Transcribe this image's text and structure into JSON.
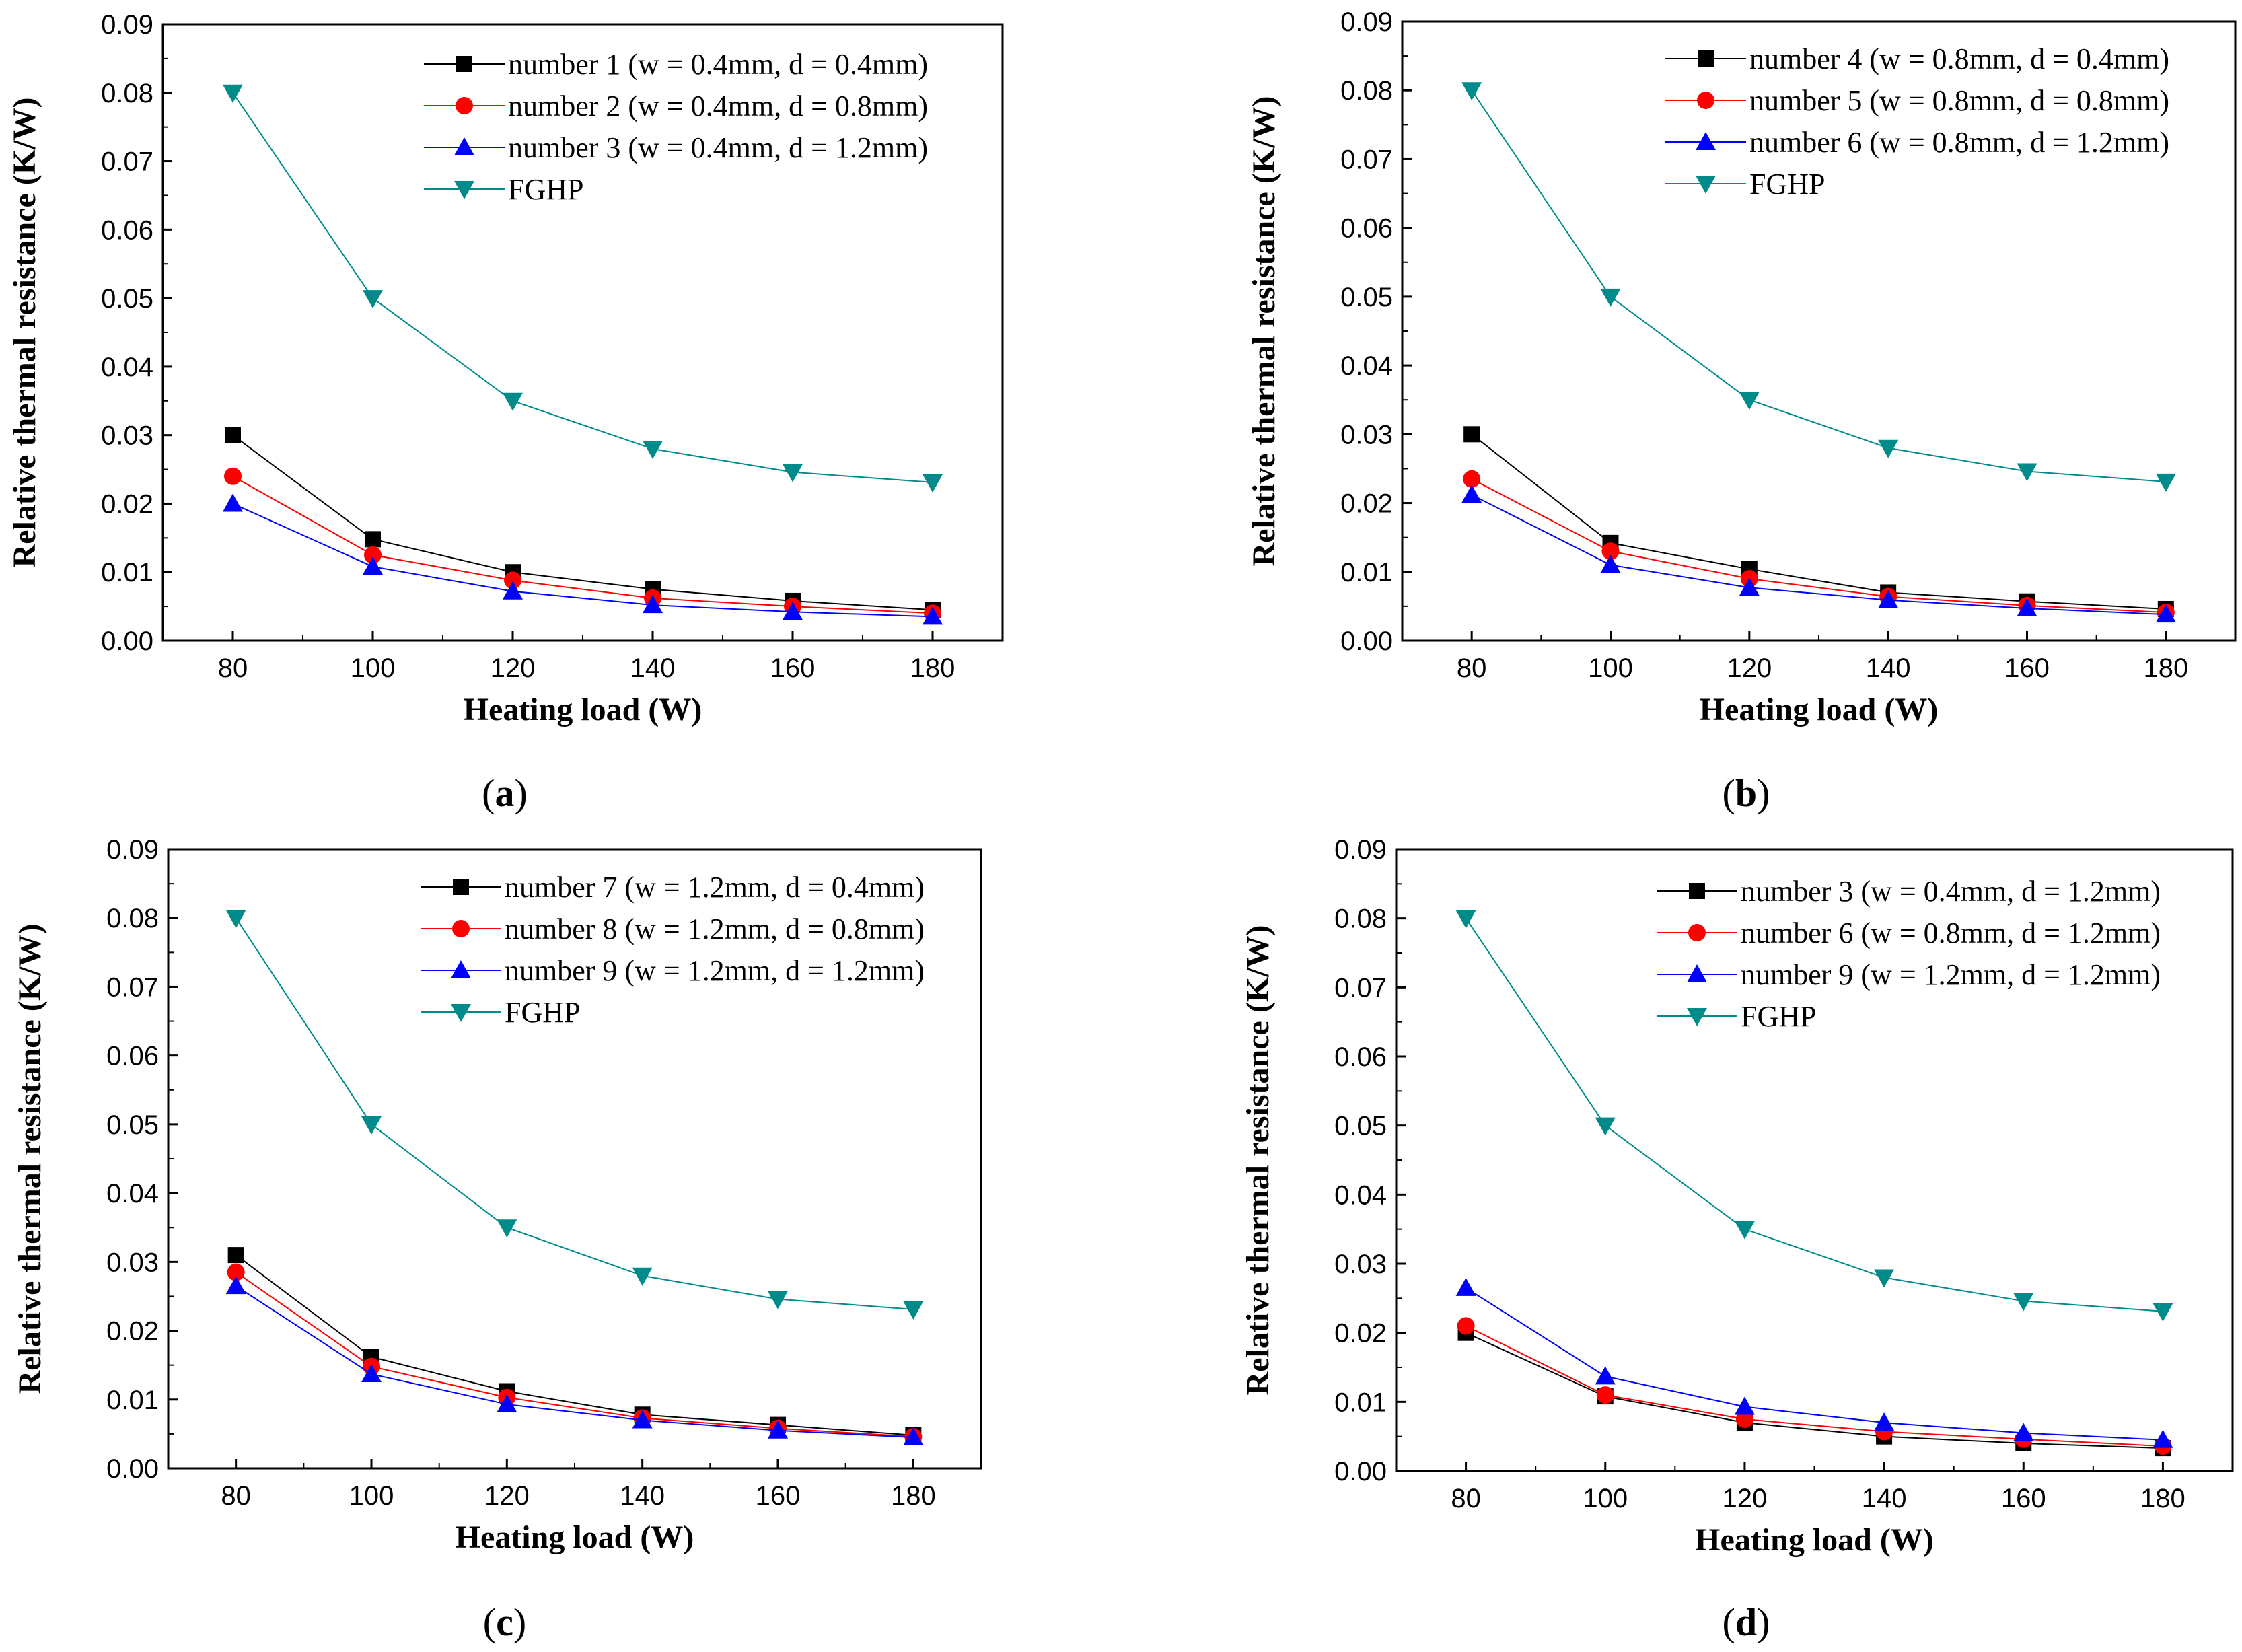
{
  "colors": {
    "number_black": "#000000",
    "number_red": "#ff0000",
    "number_blue": "#0000ff",
    "fghp": "#008b8b"
  },
  "chart_data": [
    {
      "type": "line",
      "panel": "a",
      "caption": "(a)",
      "xlabel": "Heating load (W)",
      "ylabel": "Relative thermal resistance (K/W)",
      "xlim": [
        70,
        190
      ],
      "ylim": [
        0,
        0.09
      ],
      "xticks": [
        "80",
        "100",
        "120",
        "140",
        "160",
        "180"
      ],
      "yticks": [
        "0.00",
        "0.01",
        "0.02",
        "0.03",
        "0.04",
        "0.05",
        "0.06",
        "0.07",
        "0.08",
        "0.09"
      ],
      "legend_position": "top-right",
      "x": [
        80,
        100,
        120,
        140,
        160,
        180
      ],
      "series": [
        {
          "name": "number 1 (w = 0.4mm, d = 0.4mm)",
          "color": "#000000",
          "marker": "square",
          "values": [
            0.03,
            0.0148,
            0.01,
            0.0075,
            0.0058,
            0.0045
          ]
        },
        {
          "name": "number 2 (w = 0.4mm, d = 0.8mm)",
          "color": "#ff0000",
          "marker": "circle",
          "values": [
            0.024,
            0.0125,
            0.0088,
            0.0062,
            0.005,
            0.004
          ]
        },
        {
          "name": "number 3 (w = 0.4mm, d = 1.2mm)",
          "color": "#0000ff",
          "marker": "triangle-up",
          "values": [
            0.02,
            0.0108,
            0.0072,
            0.0052,
            0.0042,
            0.0035
          ]
        },
        {
          "name": "FGHP",
          "color": "#008b8b",
          "marker": "triangle-down",
          "values": [
            0.08,
            0.05,
            0.035,
            0.028,
            0.0246,
            0.0231
          ]
        }
      ]
    },
    {
      "type": "line",
      "panel": "b",
      "caption": "(b)",
      "xlabel": "Heating load (W)",
      "ylabel": "Relative thermal resistance (K/W)",
      "xlim": [
        70,
        190
      ],
      "ylim": [
        0,
        0.09
      ],
      "xticks": [
        "80",
        "100",
        "120",
        "140",
        "160",
        "180"
      ],
      "yticks": [
        "0.00",
        "0.01",
        "0.02",
        "0.03",
        "0.04",
        "0.05",
        "0.06",
        "0.07",
        "0.08",
        "0.09"
      ],
      "legend_position": "top-right",
      "x": [
        80,
        100,
        120,
        140,
        160,
        180
      ],
      "series": [
        {
          "name": "number 4 (w = 0.8mm, d = 0.4mm)",
          "color": "#000000",
          "marker": "square",
          "values": [
            0.03,
            0.0142,
            0.0104,
            0.007,
            0.0057,
            0.0046
          ]
        },
        {
          "name": "number 5 (w = 0.8mm, d = 0.8mm)",
          "color": "#ff0000",
          "marker": "circle",
          "values": [
            0.0235,
            0.013,
            0.009,
            0.0064,
            0.0051,
            0.0041
          ]
        },
        {
          "name": "number 6 (w = 0.8mm, d = 1.2mm)",
          "color": "#0000ff",
          "marker": "triangle-up",
          "values": [
            0.0212,
            0.011,
            0.0077,
            0.0059,
            0.0047,
            0.0038
          ]
        },
        {
          "name": "FGHP",
          "color": "#008b8b",
          "marker": "triangle-down",
          "values": [
            0.08,
            0.05,
            0.035,
            0.028,
            0.0246,
            0.0231
          ]
        }
      ]
    },
    {
      "type": "line",
      "panel": "c",
      "caption": "(c)",
      "xlabel": "Heating load (W)",
      "ylabel": "Relative thermal resistance (K/W)",
      "xlim": [
        70,
        190
      ],
      "ylim": [
        0,
        0.09
      ],
      "xticks": [
        "80",
        "100",
        "120",
        "140",
        "160",
        "180"
      ],
      "yticks": [
        "0.00",
        "0.01",
        "0.02",
        "0.03",
        "0.04",
        "0.05",
        "0.06",
        "0.07",
        "0.08",
        "0.09"
      ],
      "legend_position": "top-right",
      "x": [
        80,
        100,
        120,
        140,
        160,
        180
      ],
      "series": [
        {
          "name": "number 7 (w = 1.2mm, d = 0.4mm)",
          "color": "#000000",
          "marker": "square",
          "values": [
            0.031,
            0.0162,
            0.0112,
            0.0078,
            0.0063,
            0.0048
          ]
        },
        {
          "name": "number 8 (w = 1.2mm, d = 0.8mm)",
          "color": "#ff0000",
          "marker": "circle",
          "values": [
            0.0285,
            0.0148,
            0.0103,
            0.0073,
            0.0058,
            0.0046
          ]
        },
        {
          "name": "number 9 (w = 1.2mm, d = 1.2mm)",
          "color": "#0000ff",
          "marker": "triangle-up",
          "values": [
            0.0265,
            0.0137,
            0.0093,
            0.007,
            0.0055,
            0.0045
          ]
        },
        {
          "name": "FGHP",
          "color": "#008b8b",
          "marker": "triangle-down",
          "values": [
            0.08,
            0.05,
            0.035,
            0.028,
            0.0246,
            0.0231
          ]
        }
      ]
    },
    {
      "type": "line",
      "panel": "d",
      "caption": "(d)",
      "xlabel": "Heating load (W)",
      "ylabel": "Relative thermal resistance (K/W)",
      "xlim": [
        70,
        190
      ],
      "ylim": [
        0,
        0.09
      ],
      "xticks": [
        "80",
        "100",
        "120",
        "140",
        "160",
        "180"
      ],
      "yticks": [
        "0.00",
        "0.01",
        "0.02",
        "0.03",
        "0.04",
        "0.05",
        "0.06",
        "0.07",
        "0.08",
        "0.09"
      ],
      "legend_position": "top-right",
      "x": [
        80,
        100,
        120,
        140,
        160,
        180
      ],
      "series": [
        {
          "name": "number 3 (w = 0.4mm, d = 1.2mm)",
          "color": "#000000",
          "marker": "square",
          "values": [
            0.02,
            0.0108,
            0.007,
            0.005,
            0.004,
            0.0033
          ]
        },
        {
          "name": "number 6 (w = 0.8mm, d = 1.2mm)",
          "color": "#ff0000",
          "marker": "circle",
          "values": [
            0.021,
            0.011,
            0.0075,
            0.0057,
            0.0046,
            0.0036
          ]
        },
        {
          "name": "number 9 (w = 1.2mm, d = 1.2mm)",
          "color": "#0000ff",
          "marker": "triangle-up",
          "values": [
            0.0265,
            0.0137,
            0.0093,
            0.007,
            0.0055,
            0.0045
          ]
        },
        {
          "name": "FGHP",
          "color": "#008b8b",
          "marker": "triangle-down",
          "values": [
            0.08,
            0.05,
            0.035,
            0.028,
            0.0246,
            0.0231
          ]
        }
      ]
    }
  ]
}
